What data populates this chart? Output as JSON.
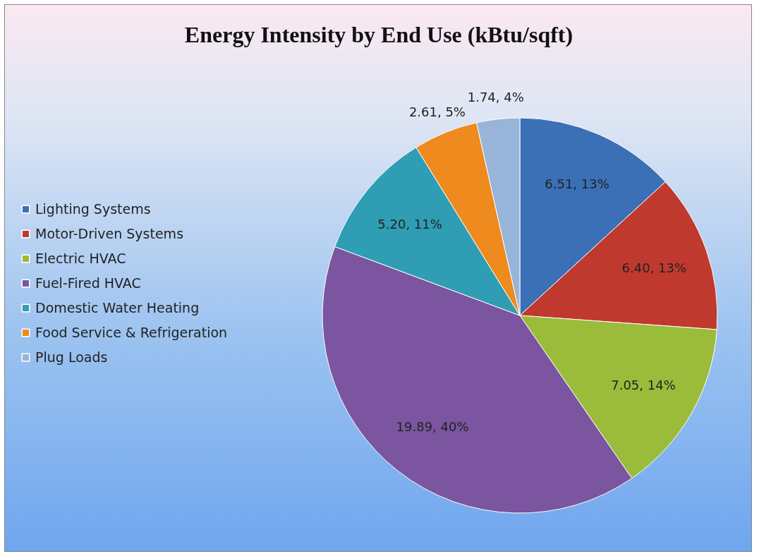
{
  "chart_data": {
    "type": "pie",
    "title": "Energy Intensity by End Use (kBtu/sqft)",
    "categories": [
      "Lighting Systems",
      "Motor-Driven Systems",
      "Electric HVAC",
      "Fuel-Fired HVAC",
      "Domestic Water Heating",
      "Food Service & Refrigeration",
      "Plug Loads"
    ],
    "values": [
      6.51,
      6.4,
      7.05,
      19.89,
      5.2,
      2.61,
      1.74
    ],
    "value_labels": [
      "6.51, 13%",
      "6.40, 13%",
      "7.05, 14%",
      "19.89, 40%",
      "5.20, 11%",
      "2.61, 5%",
      "1.74, 4%"
    ],
    "colors": [
      "#3b6fb6",
      "#c0392f",
      "#9bbb3b",
      "#7b559f",
      "#2f9db3",
      "#ee8a1e",
      "#98b4d9"
    ],
    "legend": "left"
  }
}
